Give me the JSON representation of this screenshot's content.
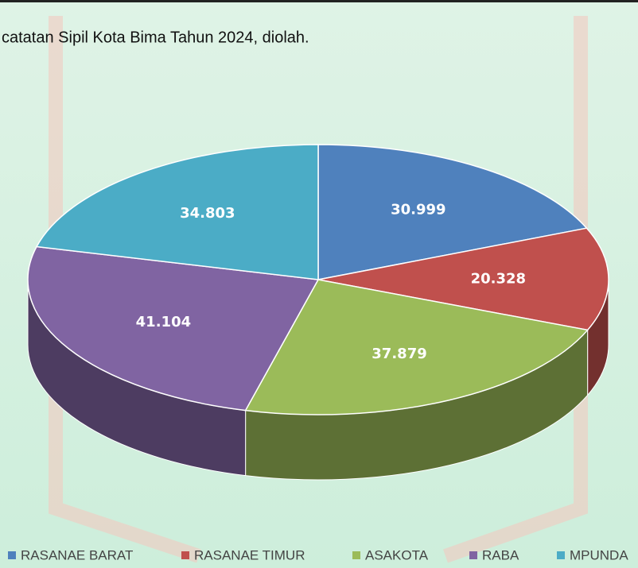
{
  "chart_data": {
    "type": "pie",
    "subtitle": "catatan Sipil Kota Bima Tahun 2024, diolah.",
    "categories": [
      "RASANAE BARAT",
      "RASANAE TIMUR",
      "ASAKOTA",
      "RABA",
      "MPUNDA"
    ],
    "values": [
      30.999,
      20.328,
      37.879,
      41.104,
      34.803
    ],
    "colors": [
      "#4f81bd",
      "#c0504d",
      "#9bbb59",
      "#8064a2",
      "#4bacc6"
    ],
    "legend": "bottom"
  }
}
